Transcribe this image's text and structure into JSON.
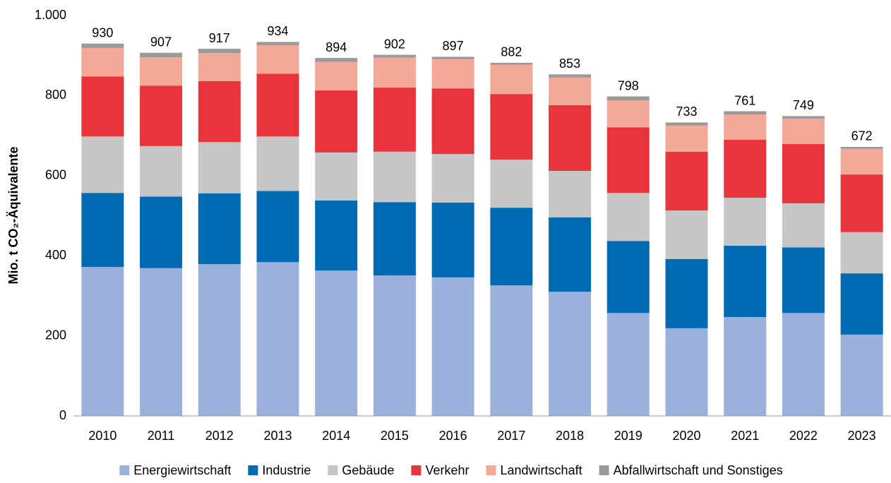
{
  "chart_data": {
    "type": "stacked_bar",
    "y_label": "Mio. t CO₂-Äquivalente",
    "categories": [
      "2010",
      "2011",
      "2012",
      "2013",
      "2014",
      "2015",
      "2016",
      "2017",
      "2018",
      "2019",
      "2020",
      "2021",
      "2022",
      "2023"
    ],
    "series": [
      {
        "name": "Energiewirtschaft",
        "color": "#9bb1dc",
        "values": [
          372,
          369,
          379,
          384,
          363,
          351,
          346,
          326,
          310,
          257,
          219,
          247,
          257,
          203
        ]
      },
      {
        "name": "Industrie",
        "color": "#006ab3",
        "values": [
          185,
          179,
          177,
          178,
          175,
          183,
          187,
          194,
          186,
          180,
          173,
          178,
          164,
          153
        ]
      },
      {
        "name": "Gebäude",
        "color": "#c6c6c6",
        "values": [
          141,
          126,
          128,
          136,
          120,
          126,
          121,
          120,
          116,
          120,
          121,
          120,
          110,
          103
        ]
      },
      {
        "name": "Verkehr",
        "color": "#e8353b",
        "values": [
          150,
          151,
          152,
          157,
          155,
          160,
          164,
          164,
          164,
          164,
          147,
          145,
          148,
          144
        ]
      },
      {
        "name": "Landwirtschaft",
        "color": "#f4a898",
        "values": [
          71,
          71,
          70,
          71,
          71,
          75,
          73,
          73,
          69,
          67,
          65,
          63,
          63,
          64
        ]
      },
      {
        "name": "Abfallwirtschaft und Sonstiges",
        "color": "#9a9a9a",
        "values": [
          11,
          11,
          11,
          8,
          10,
          7,
          6,
          5,
          8,
          10,
          8,
          8,
          7,
          5
        ]
      }
    ],
    "totals": [
      930,
      907,
      917,
      934,
      894,
      902,
      897,
      882,
      853,
      798,
      733,
      761,
      749,
      672
    ],
    "ylim": [
      0,
      1000
    ],
    "yticks": [
      0,
      200,
      400,
      600,
      800,
      {
        "value": 1000,
        "label": "1.000"
      }
    ],
    "grid": false,
    "legend": "bottom"
  }
}
